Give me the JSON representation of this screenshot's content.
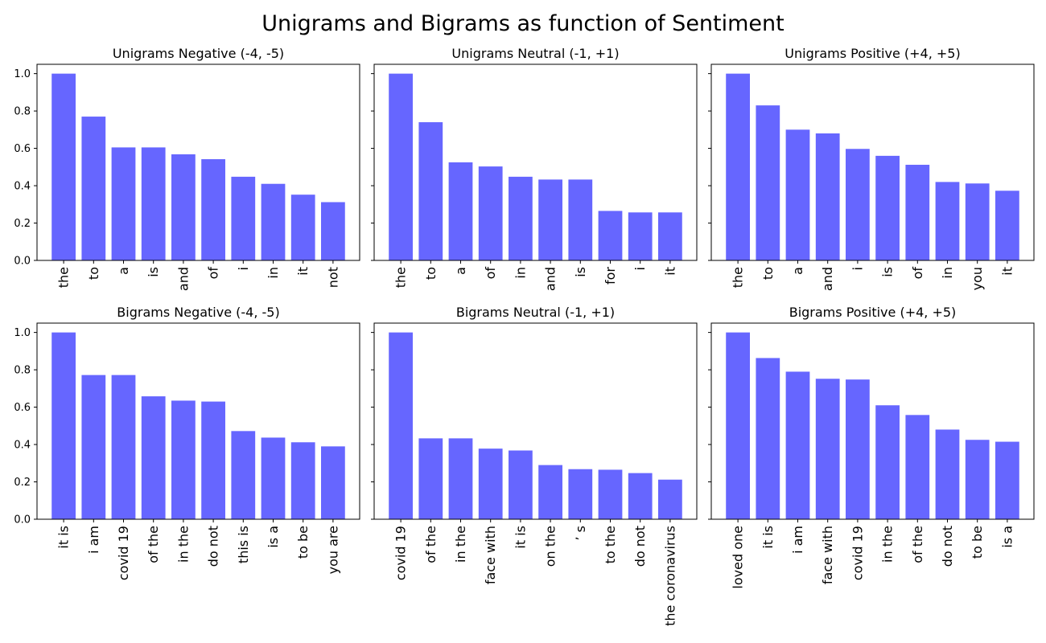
{
  "figure_title": "Unigrams and Bigrams as function of Sentiment",
  "colors": {
    "bar": "#6666ff",
    "axis": "#000000",
    "background": "#ffffff"
  },
  "chart_data": [
    {
      "type": "bar",
      "title": "Unigrams Negative (-4, -5)",
      "categories": [
        "the",
        "to",
        "a",
        "is",
        "and",
        "of",
        "i",
        "in",
        "it",
        "not"
      ],
      "values": [
        1.0,
        0.77,
        0.605,
        0.605,
        0.568,
        0.542,
        0.448,
        0.41,
        0.352,
        0.312
      ],
      "xlabel": "",
      "ylabel": "",
      "ylim": [
        0,
        1.05
      ],
      "yticks": [
        0.0,
        0.2,
        0.4,
        0.6,
        0.8,
        1.0
      ],
      "grid": false
    },
    {
      "type": "bar",
      "title": "Unigrams Neutral (-1, +1)",
      "categories": [
        "the",
        "to",
        "a",
        "of",
        "in",
        "and",
        "is",
        "for",
        "i",
        "it"
      ],
      "values": [
        1.0,
        0.74,
        0.525,
        0.503,
        0.448,
        0.433,
        0.433,
        0.265,
        0.257,
        0.257
      ],
      "xlabel": "",
      "ylabel": "",
      "ylim": [
        0,
        1.05
      ],
      "yticks": [
        0.0,
        0.2,
        0.4,
        0.6,
        0.8,
        1.0
      ],
      "grid": false
    },
    {
      "type": "bar",
      "title": "Unigrams Positive (+4, +5)",
      "categories": [
        "the",
        "to",
        "a",
        "and",
        "i",
        "is",
        "of",
        "in",
        "you",
        "it"
      ],
      "values": [
        1.0,
        0.83,
        0.7,
        0.68,
        0.597,
        0.56,
        0.512,
        0.42,
        0.412,
        0.373
      ],
      "xlabel": "",
      "ylabel": "",
      "ylim": [
        0,
        1.05
      ],
      "yticks": [
        0.0,
        0.2,
        0.4,
        0.6,
        0.8,
        1.0
      ],
      "grid": false
    },
    {
      "type": "bar",
      "title": "Bigrams Negative (-4, -5)",
      "categories": [
        "it is",
        "i am",
        "covid 19",
        "of the",
        "in the",
        "do not",
        "this is",
        "is a",
        "to be",
        "you are"
      ],
      "values": [
        1.0,
        0.772,
        0.772,
        0.658,
        0.635,
        0.63,
        0.472,
        0.437,
        0.412,
        0.39
      ],
      "xlabel": "",
      "ylabel": "",
      "ylim": [
        0,
        1.05
      ],
      "yticks": [
        0.0,
        0.2,
        0.4,
        0.6,
        0.8,
        1.0
      ],
      "grid": false
    },
    {
      "type": "bar",
      "title": "Bigrams Neutral (-1, +1)",
      "categories": [
        "covid 19",
        "of the",
        "in the",
        "face with",
        "it is",
        "on the",
        "’ s",
        "to the",
        "do not",
        "the coronavirus"
      ],
      "values": [
        1.0,
        0.433,
        0.433,
        0.378,
        0.368,
        0.29,
        0.268,
        0.265,
        0.247,
        0.212
      ],
      "xlabel": "",
      "ylabel": "",
      "ylim": [
        0,
        1.05
      ],
      "yticks": [
        0.0,
        0.2,
        0.4,
        0.6,
        0.8,
        1.0
      ],
      "grid": false
    },
    {
      "type": "bar",
      "title": "Bigrams Positive (+4, +5)",
      "categories": [
        "loved one",
        "it is",
        "i am",
        "face with",
        "covid 19",
        "in the",
        "of the",
        "do not",
        "to be",
        "is a"
      ],
      "values": [
        1.0,
        0.863,
        0.79,
        0.752,
        0.748,
        0.61,
        0.558,
        0.48,
        0.425,
        0.415
      ],
      "xlabel": "",
      "ylabel": "",
      "ylim": [
        0,
        1.05
      ],
      "yticks": [
        0.0,
        0.2,
        0.4,
        0.6,
        0.8,
        1.0
      ],
      "grid": false
    }
  ]
}
